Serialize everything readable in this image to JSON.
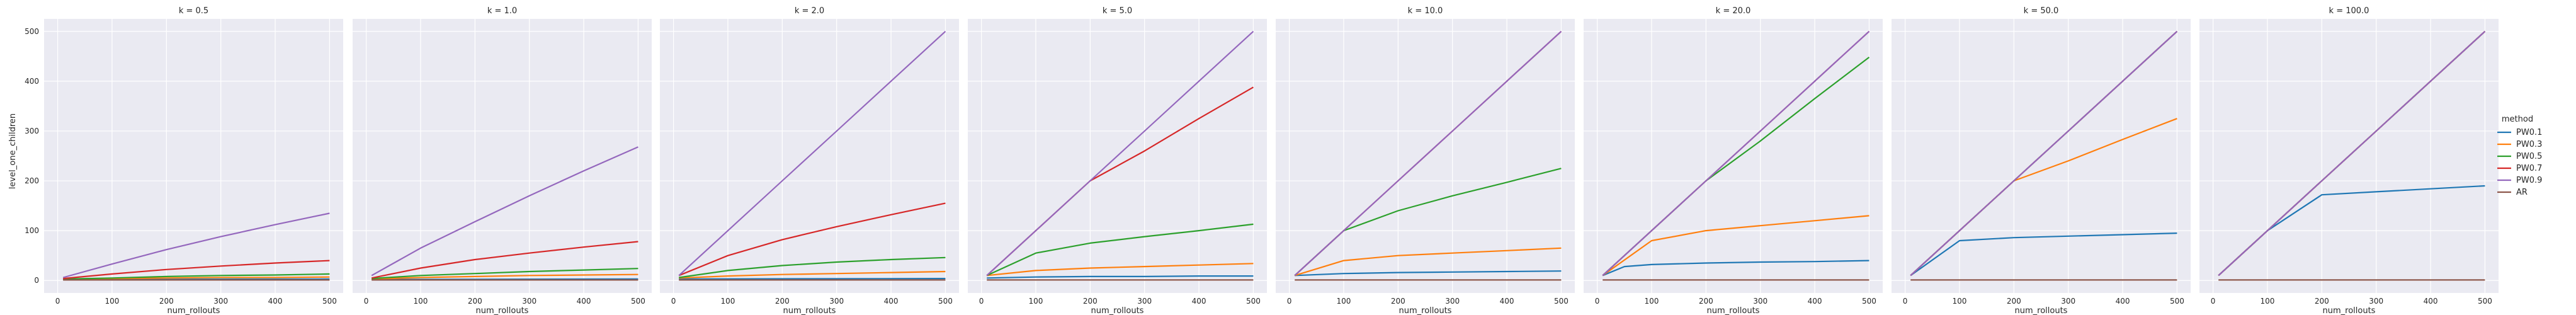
{
  "chart_data": {
    "type": "line",
    "ylabel": "level_one_children",
    "xlabel": "num_rollouts",
    "xticks": [
      0,
      100,
      200,
      300,
      400,
      500
    ],
    "yticks": [
      0,
      100,
      200,
      300,
      400,
      500
    ],
    "xlim": [
      -25,
      525
    ],
    "ylim": [
      -25,
      525
    ],
    "grid": true,
    "legend": {
      "title": "method",
      "position": "right",
      "entries": [
        "PW0.1",
        "PW0.3",
        "PW0.5",
        "PW0.7",
        "PW0.9",
        "AR"
      ]
    },
    "colors": {
      "PW0.1": "#1f77b4",
      "PW0.3": "#ff7f0e",
      "PW0.5": "#2ca02c",
      "PW0.7": "#d62728",
      "PW0.9": "#9467bd",
      "AR": "#8c564b"
    },
    "panels": [
      {
        "title": "k = 0.5",
        "series": [
          {
            "name": "PW0.1",
            "x": [
              10,
              500
            ],
            "y": [
              2,
              3
            ]
          },
          {
            "name": "PW0.3",
            "x": [
              10,
              100,
              200,
              300,
              400,
              500
            ],
            "y": [
              3,
              4,
              5,
              6,
              6,
              7
            ]
          },
          {
            "name": "PW0.5",
            "x": [
              10,
              100,
              200,
              300,
              400,
              500
            ],
            "y": [
              3,
              5,
              8,
              10,
              11,
              13
            ]
          },
          {
            "name": "PW0.7",
            "x": [
              10,
              100,
              200,
              300,
              400,
              500
            ],
            "y": [
              4,
              13,
              22,
              29,
              35,
              40
            ]
          },
          {
            "name": "PW0.9",
            "x": [
              10,
              100,
              200,
              300,
              400,
              500
            ],
            "y": [
              6,
              33,
              62,
              88,
              112,
              135
            ]
          },
          {
            "name": "AR",
            "x": [
              10,
              500
            ],
            "y": [
              1,
              1
            ]
          }
        ]
      },
      {
        "title": "k = 1.0",
        "series": [
          {
            "name": "PW0.1",
            "x": [
              10,
              500
            ],
            "y": [
              2,
              3
            ]
          },
          {
            "name": "PW0.3",
            "x": [
              10,
              100,
              200,
              300,
              400,
              500
            ],
            "y": [
              3,
              6,
              8,
              10,
              11,
              12
            ]
          },
          {
            "name": "PW0.5",
            "x": [
              10,
              100,
              200,
              300,
              400,
              500
            ],
            "y": [
              4,
              10,
              14,
              18,
              21,
              24
            ]
          },
          {
            "name": "PW0.7",
            "x": [
              10,
              100,
              200,
              300,
              400,
              500
            ],
            "y": [
              5,
              25,
              42,
              55,
              67,
              78
            ]
          },
          {
            "name": "PW0.9",
            "x": [
              10,
              100,
              200,
              300,
              400,
              500
            ],
            "y": [
              10,
              65,
              118,
              170,
              220,
              268
            ]
          },
          {
            "name": "AR",
            "x": [
              10,
              500
            ],
            "y": [
              1,
              1
            ]
          }
        ]
      },
      {
        "title": "k = 2.0",
        "series": [
          {
            "name": "PW0.1",
            "x": [
              10,
              500
            ],
            "y": [
              3,
              4
            ]
          },
          {
            "name": "PW0.3",
            "x": [
              10,
              100,
              200,
              300,
              400,
              500
            ],
            "y": [
              5,
              9,
              12,
              14,
              16,
              18
            ]
          },
          {
            "name": "PW0.5",
            "x": [
              10,
              100,
              200,
              300,
              400,
              500
            ],
            "y": [
              6,
              20,
              30,
              37,
              42,
              46
            ]
          },
          {
            "name": "PW0.7",
            "x": [
              10,
              100,
              200,
              300,
              400,
              500
            ],
            "y": [
              10,
              50,
              82,
              108,
              132,
              155
            ]
          },
          {
            "name": "PW0.9",
            "x": [
              10,
              100,
              200,
              300,
              400,
              500
            ],
            "y": [
              10,
              100,
              200,
              300,
              400,
              500
            ]
          },
          {
            "name": "AR",
            "x": [
              10,
              500
            ],
            "y": [
              1,
              1
            ]
          }
        ]
      },
      {
        "title": "k = 5.0",
        "series": [
          {
            "name": "PW0.1",
            "x": [
              10,
              100,
              200,
              300,
              400,
              500
            ],
            "y": [
              5,
              7,
              8,
              8,
              9,
              9
            ]
          },
          {
            "name": "PW0.3",
            "x": [
              10,
              100,
              200,
              300,
              400,
              500
            ],
            "y": [
              10,
              20,
              25,
              28,
              31,
              34
            ]
          },
          {
            "name": "PW0.5",
            "x": [
              10,
              100,
              200,
              300,
              400,
              500
            ],
            "y": [
              10,
              55,
              75,
              88,
              100,
              113
            ]
          },
          {
            "name": "PW0.7",
            "x": [
              10,
              100,
              200,
              300,
              400,
              500
            ],
            "y": [
              10,
              100,
              200,
              260,
              325,
              388
            ]
          },
          {
            "name": "PW0.9",
            "x": [
              10,
              100,
              200,
              300,
              400,
              500
            ],
            "y": [
              10,
              100,
              200,
              300,
              400,
              500
            ]
          },
          {
            "name": "AR",
            "x": [
              10,
              500
            ],
            "y": [
              1,
              1
            ]
          }
        ]
      },
      {
        "title": "k = 10.0",
        "series": [
          {
            "name": "PW0.1",
            "x": [
              10,
              100,
              200,
              300,
              400,
              500
            ],
            "y": [
              10,
              14,
              16,
              17,
              18,
              19
            ]
          },
          {
            "name": "PW0.3",
            "x": [
              10,
              100,
              200,
              300,
              400,
              500
            ],
            "y": [
              10,
              40,
              50,
              55,
              60,
              65
            ]
          },
          {
            "name": "PW0.5",
            "x": [
              10,
              100,
              200,
              300,
              400,
              500
            ],
            "y": [
              10,
              100,
              140,
              170,
              197,
              225
            ]
          },
          {
            "name": "PW0.7",
            "x": [
              10,
              100,
              200,
              300,
              400,
              500
            ],
            "y": [
              10,
              100,
              200,
              300,
              400,
              500
            ]
          },
          {
            "name": "PW0.9",
            "x": [
              10,
              100,
              200,
              300,
              400,
              500
            ],
            "y": [
              10,
              100,
              200,
              300,
              400,
              500
            ]
          },
          {
            "name": "AR",
            "x": [
              10,
              500
            ],
            "y": [
              1,
              1
            ]
          }
        ]
      },
      {
        "title": "k = 20.0",
        "series": [
          {
            "name": "PW0.1",
            "x": [
              10,
              50,
              100,
              200,
              300,
              400,
              500
            ],
            "y": [
              10,
              28,
              32,
              35,
              37,
              38,
              40
            ]
          },
          {
            "name": "PW0.3",
            "x": [
              10,
              100,
              200,
              300,
              400,
              500
            ],
            "y": [
              10,
              80,
              100,
              110,
              120,
              130
            ]
          },
          {
            "name": "PW0.5",
            "x": [
              10,
              100,
              200,
              300,
              400,
              500
            ],
            "y": [
              10,
              100,
              200,
              280,
              365,
              448
            ]
          },
          {
            "name": "PW0.7",
            "x": [
              10,
              100,
              200,
              300,
              400,
              500
            ],
            "y": [
              10,
              100,
              200,
              300,
              400,
              500
            ]
          },
          {
            "name": "PW0.9",
            "x": [
              10,
              100,
              200,
              300,
              400,
              500
            ],
            "y": [
              10,
              100,
              200,
              300,
              400,
              500
            ]
          },
          {
            "name": "AR",
            "x": [
              10,
              500
            ],
            "y": [
              1,
              1
            ]
          }
        ]
      },
      {
        "title": "k = 50.0",
        "series": [
          {
            "name": "PW0.1",
            "x": [
              10,
              100,
              200,
              300,
              400,
              500
            ],
            "y": [
              10,
              80,
              86,
              89,
              92,
              95
            ]
          },
          {
            "name": "PW0.3",
            "x": [
              10,
              100,
              200,
              300,
              400,
              500
            ],
            "y": [
              10,
              100,
              200,
              240,
              283,
              325
            ]
          },
          {
            "name": "PW0.5",
            "x": [
              10,
              100,
              200,
              300,
              400,
              500
            ],
            "y": [
              10,
              100,
              200,
              300,
              400,
              500
            ]
          },
          {
            "name": "PW0.7",
            "x": [
              10,
              100,
              200,
              300,
              400,
              500
            ],
            "y": [
              10,
              100,
              200,
              300,
              400,
              500
            ]
          },
          {
            "name": "PW0.9",
            "x": [
              10,
              100,
              200,
              300,
              400,
              500
            ],
            "y": [
              10,
              100,
              200,
              300,
              400,
              500
            ]
          },
          {
            "name": "AR",
            "x": [
              10,
              500
            ],
            "y": [
              1,
              1
            ]
          }
        ]
      },
      {
        "title": "k = 100.0",
        "series": [
          {
            "name": "PW0.1",
            "x": [
              10,
              100,
              200,
              300,
              400,
              500
            ],
            "y": [
              10,
              100,
              172,
              178,
              184,
              190
            ]
          },
          {
            "name": "PW0.3",
            "x": [
              10,
              100,
              200,
              300,
              400,
              500
            ],
            "y": [
              10,
              100,
              200,
              300,
              400,
              500
            ]
          },
          {
            "name": "PW0.5",
            "x": [
              10,
              100,
              200,
              300,
              400,
              500
            ],
            "y": [
              10,
              100,
              200,
              300,
              400,
              500
            ]
          },
          {
            "name": "PW0.7",
            "x": [
              10,
              100,
              200,
              300,
              400,
              500
            ],
            "y": [
              10,
              100,
              200,
              300,
              400,
              500
            ]
          },
          {
            "name": "PW0.9",
            "x": [
              10,
              100,
              200,
              300,
              400,
              500
            ],
            "y": [
              10,
              100,
              200,
              300,
              400,
              500
            ]
          },
          {
            "name": "AR",
            "x": [
              10,
              500
            ],
            "y": [
              1,
              1
            ]
          }
        ]
      }
    ]
  }
}
